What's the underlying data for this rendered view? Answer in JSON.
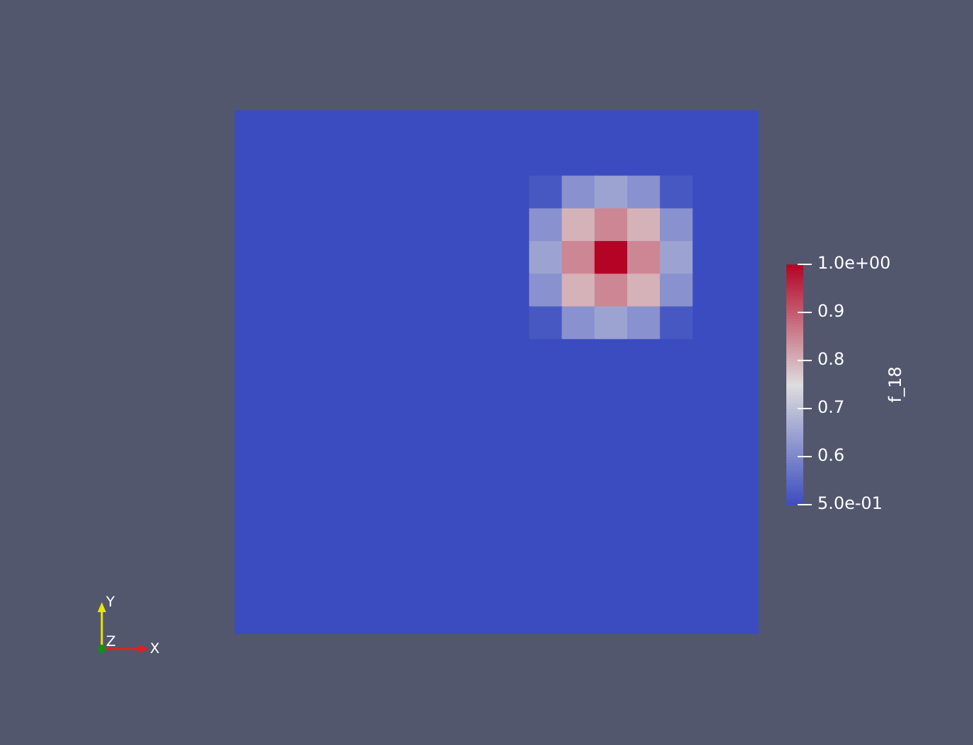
{
  "chart_data": {
    "type": "heatmap",
    "clabel": "f_18",
    "clim": [
      0.5,
      1
    ],
    "cticks": [
      {
        "value": 0.5,
        "label": "5.0e-01"
      },
      0.6,
      0.7,
      0.8,
      0.9,
      {
        "value": 1,
        "label": "1.0e+00"
      }
    ],
    "categories": [
      null,
      null,
      null,
      null,
      null,
      null,
      null,
      null,
      null,
      null,
      null,
      null,
      null,
      null,
      null,
      null
    ],
    "y_categories": [
      null,
      null,
      null,
      null,
      null,
      null,
      null,
      null,
      null,
      null,
      null,
      null,
      null,
      null,
      null,
      null
    ],
    "cells": [
      [
        0.5,
        0.5,
        0.5,
        0.5,
        0.5,
        0.5,
        0.5,
        0.5,
        0.5,
        0.5,
        0.5,
        0.5,
        0.5,
        0.5,
        0.5,
        0.5
      ],
      [
        0.5,
        0.5,
        0.5,
        0.5,
        0.5,
        0.5,
        0.5,
        0.5,
        0.5,
        0.5,
        0.5,
        0.5,
        0.5,
        0.5,
        0.5,
        0.5
      ],
      [
        0.5,
        0.5,
        0.5,
        0.5,
        0.5,
        0.5,
        0.5,
        0.5,
        0.5,
        0.52,
        0.62,
        0.65,
        0.62,
        0.52,
        0.5,
        0.5
      ],
      [
        0.5,
        0.5,
        0.5,
        0.5,
        0.5,
        0.5,
        0.5,
        0.5,
        0.5,
        0.62,
        0.8,
        0.85,
        0.8,
        0.62,
        0.5,
        0.5
      ],
      [
        0.5,
        0.5,
        0.5,
        0.5,
        0.5,
        0.5,
        0.5,
        0.5,
        0.5,
        0.65,
        0.85,
        1.0,
        0.85,
        0.65,
        0.5,
        0.5
      ],
      [
        0.5,
        0.5,
        0.5,
        0.5,
        0.5,
        0.5,
        0.5,
        0.5,
        0.5,
        0.62,
        0.8,
        0.85,
        0.8,
        0.62,
        0.5,
        0.5
      ],
      [
        0.5,
        0.5,
        0.5,
        0.5,
        0.5,
        0.5,
        0.5,
        0.5,
        0.5,
        0.52,
        0.62,
        0.65,
        0.62,
        0.52,
        0.5,
        0.5
      ],
      [
        0.5,
        0.5,
        0.5,
        0.5,
        0.5,
        0.5,
        0.5,
        0.5,
        0.5,
        0.5,
        0.5,
        0.5,
        0.5,
        0.5,
        0.5,
        0.5
      ],
      [
        0.5,
        0.5,
        0.5,
        0.5,
        0.5,
        0.5,
        0.5,
        0.5,
        0.5,
        0.5,
        0.5,
        0.5,
        0.5,
        0.5,
        0.5,
        0.5
      ],
      [
        0.5,
        0.5,
        0.5,
        0.5,
        0.5,
        0.5,
        0.5,
        0.5,
        0.5,
        0.5,
        0.5,
        0.5,
        0.5,
        0.5,
        0.5,
        0.5
      ],
      [
        0.5,
        0.5,
        0.5,
        0.5,
        0.5,
        0.5,
        0.5,
        0.5,
        0.5,
        0.5,
        0.5,
        0.5,
        0.5,
        0.5,
        0.5,
        0.5
      ],
      [
        0.5,
        0.5,
        0.5,
        0.5,
        0.5,
        0.5,
        0.5,
        0.5,
        0.5,
        0.5,
        0.5,
        0.5,
        0.5,
        0.5,
        0.5,
        0.5
      ],
      [
        0.5,
        0.5,
        0.5,
        0.5,
        0.5,
        0.5,
        0.5,
        0.5,
        0.5,
        0.5,
        0.5,
        0.5,
        0.5,
        0.5,
        0.5,
        0.5
      ],
      [
        0.5,
        0.5,
        0.5,
        0.5,
        0.5,
        0.5,
        0.5,
        0.5,
        0.5,
        0.5,
        0.5,
        0.5,
        0.5,
        0.5,
        0.5,
        0.5
      ],
      [
        0.5,
        0.5,
        0.5,
        0.5,
        0.5,
        0.5,
        0.5,
        0.5,
        0.5,
        0.5,
        0.5,
        0.5,
        0.5,
        0.5,
        0.5,
        0.5
      ],
      [
        0.5,
        0.5,
        0.5,
        0.5,
        0.5,
        0.5,
        0.5,
        0.5,
        0.5,
        0.5,
        0.5,
        0.5,
        0.5,
        0.5,
        0.5,
        0.5
      ]
    ],
    "annotations": [
      "X",
      "Y",
      "Z"
    ]
  }
}
